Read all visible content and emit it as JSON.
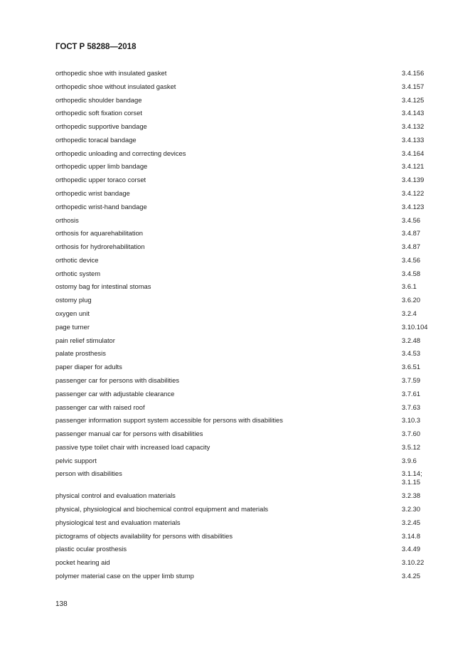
{
  "header": {
    "title": "ГОСТ Р 58288—2018"
  },
  "entries": [
    {
      "term": "orthopedic shoe with insulated gasket",
      "ref": "3.4.156"
    },
    {
      "term": "orthopedic shoe without insulated gasket",
      "ref": "3.4.157"
    },
    {
      "term": "orthopedic shoulder bandage",
      "ref": "3.4.125"
    },
    {
      "term": "orthopedic soft fixation corset",
      "ref": "3.4.143"
    },
    {
      "term": "orthopedic supportive bandage",
      "ref": "3.4.132"
    },
    {
      "term": "orthopedic toracal bandage",
      "ref": "3.4.133"
    },
    {
      "term": "orthopedic unloading and correcting devices",
      "ref": "3.4.164"
    },
    {
      "term": "orthopedic upper limb bandage",
      "ref": "3.4.121"
    },
    {
      "term": "orthopedic upper toraco corset",
      "ref": "3.4.139"
    },
    {
      "term": "orthopedic wrist bandage",
      "ref": "3.4.122"
    },
    {
      "term": "orthopedic wrist-hand bandage",
      "ref": "3.4.123"
    },
    {
      "term": "orthosis",
      "ref": "3.4.56"
    },
    {
      "term": "orthosis for aquarehabilitation",
      "ref": "3.4.87"
    },
    {
      "term": "orthosis for hydrorehabilitation",
      "ref": "3.4.87"
    },
    {
      "term": "orthotic device",
      "ref": "3.4.56"
    },
    {
      "term": "orthotic system",
      "ref": "3.4.58"
    },
    {
      "term": "ostomy bag for intestinal stomas",
      "ref": "3.6.1"
    },
    {
      "term": "ostomy plug",
      "ref": "3.6.20"
    },
    {
      "term": "oxygen unit",
      "ref": "3.2.4"
    },
    {
      "term": "page turner",
      "ref": "3.10.104"
    },
    {
      "term": "pain relief stimulator",
      "ref": "3.2.48"
    },
    {
      "term": "palate prosthesis",
      "ref": "3.4.53"
    },
    {
      "term": "paper diaper for adults",
      "ref": "3.6.51"
    },
    {
      "term": "passenger car for persons with disabilities",
      "ref": "3.7.59"
    },
    {
      "term": "passenger car with adjustable clearance",
      "ref": "3.7.61"
    },
    {
      "term": "passenger car with raised roof",
      "ref": "3.7.63"
    },
    {
      "term": "passenger information support system accessible for persons with disabilities",
      "ref": "3.10.3"
    },
    {
      "term": "passenger manual car for persons with disabilities",
      "ref": "3.7.60"
    },
    {
      "term": "passive type toilet chair with increased load capacity",
      "ref": "3.5.12"
    },
    {
      "term": "pelvic support",
      "ref": "3.9.6"
    },
    {
      "term": "person with disabilities",
      "ref": "3.1.14;\n3.1.15"
    },
    {
      "term": "physical control and evaluation materials",
      "ref": "3.2.38"
    },
    {
      "term": "physical, physiological and biochemical control equipment and materials",
      "ref": "3.2.30"
    },
    {
      "term": "physiological test and evaluation materials",
      "ref": "3.2.45"
    },
    {
      "term": "pictograms of objects availability for persons with disabilities",
      "ref": "3.14.8"
    },
    {
      "term": "plastic ocular prosthesis",
      "ref": "3.4.49"
    },
    {
      "term": "pocket hearing aid",
      "ref": "3.10.22"
    },
    {
      "term": "polymer material case on the upper limb stump",
      "ref": "3.4.25"
    }
  ],
  "footer": {
    "page_number": "138"
  }
}
